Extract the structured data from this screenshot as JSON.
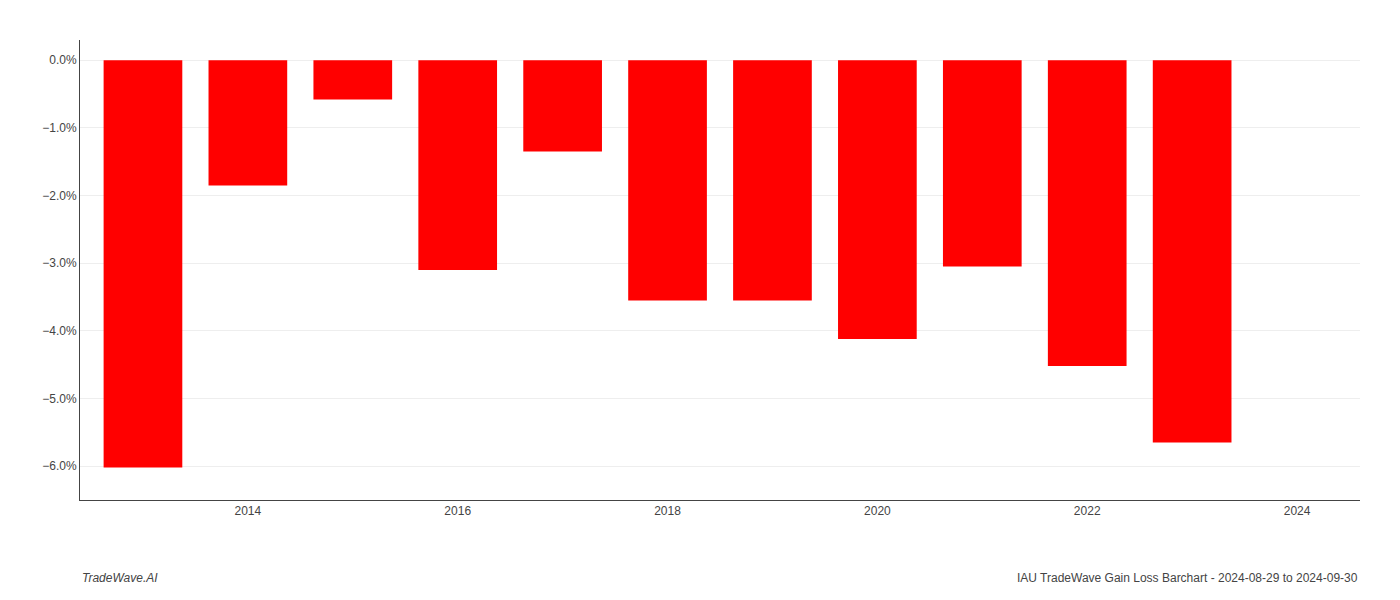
{
  "chart_data": {
    "type": "bar",
    "x": [
      2013,
      2014,
      2015,
      2016,
      2017,
      2018,
      2019,
      2020,
      2021,
      2022,
      2023
    ],
    "values": [
      -6.02,
      -1.85,
      -0.58,
      -3.1,
      -1.35,
      -3.55,
      -3.55,
      -4.12,
      -3.05,
      -4.52,
      -5.65
    ],
    "color": "#ff0000",
    "xlim": [
      2012.4,
      2024.6
    ],
    "xticks": [
      2014,
      2016,
      2018,
      2020,
      2022,
      2024
    ],
    "ylim": [
      -6.5,
      0.3
    ],
    "yticks": [
      {
        "value": -6,
        "label": "−6.0%"
      },
      {
        "value": -5,
        "label": "−5.0%"
      },
      {
        "value": -4,
        "label": "−4.0%"
      },
      {
        "value": -3,
        "label": "−3.0%"
      },
      {
        "value": -2,
        "label": "−2.0%"
      },
      {
        "value": -1,
        "label": "−1.0%"
      },
      {
        "value": 0,
        "label": "0.0%"
      }
    ],
    "grid": true,
    "annotations": [
      "TradeWave.AI",
      "IAU TradeWave Gain Loss Barchart - 2024-08-29 to 2024-09-30"
    ]
  }
}
